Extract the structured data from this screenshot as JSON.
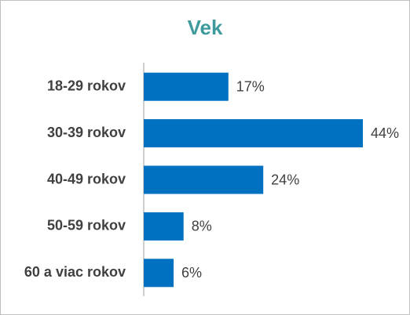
{
  "chart_data": {
    "type": "bar",
    "orientation": "horizontal",
    "title": "Vek",
    "categories": [
      "18-29 rokov",
      "30-39 rokov",
      "40-49 rokov",
      "50-59 rokov",
      "60 a viac rokov"
    ],
    "values": [
      17,
      44,
      24,
      8,
      6
    ],
    "value_labels": [
      "17%",
      "44%",
      "24%",
      "8%",
      "6%"
    ],
    "color": "#0070c0"
  }
}
